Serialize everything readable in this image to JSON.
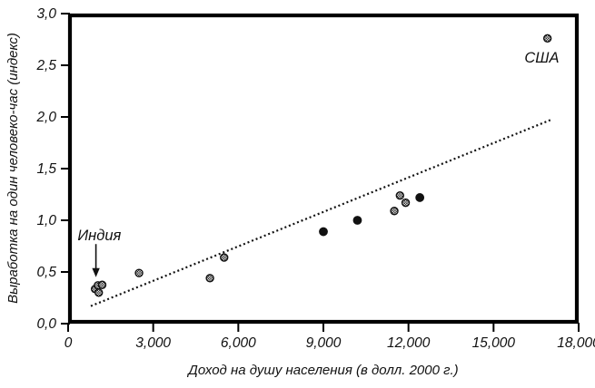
{
  "chart_data": {
    "type": "scatter",
    "title": "",
    "xlabel": "Доход на душу населения (в долл. 2000 г.)",
    "ylabel": "Выработка на один человеко-час (индекс)",
    "xlim": [
      0,
      18000
    ],
    "ylim": [
      0.0,
      3.0
    ],
    "grid": false,
    "legend": "none",
    "x_ticks": [
      0,
      3000,
      6000,
      9000,
      12000,
      15000,
      18000
    ],
    "x_tick_labels": [
      "0",
      "3,000",
      "6,000",
      "9,000",
      "12,000",
      "15,000",
      "18,000"
    ],
    "y_ticks": [
      0.0,
      0.5,
      1.0,
      1.5,
      2.0,
      2.5,
      3.0
    ],
    "y_tick_labels": [
      "0,0",
      "0,5",
      "1,0",
      "1,5",
      "2,0",
      "2,5",
      "3,0"
    ],
    "series": [
      {
        "name": "series-hatched-markers",
        "marker": "hatched-circle",
        "points": [
          [
            950,
            0.335
          ],
          [
            1050,
            0.37
          ],
          [
            1080,
            0.3
          ],
          [
            1200,
            0.375
          ],
          [
            2500,
            0.49
          ],
          [
            5000,
            0.44
          ],
          [
            5500,
            0.64
          ],
          [
            11500,
            1.09
          ],
          [
            11700,
            1.24
          ],
          [
            11900,
            1.17
          ],
          [
            16900,
            2.76
          ]
        ]
      },
      {
        "name": "series-solid-markers",
        "marker": "filled-circle",
        "points": [
          [
            9000,
            0.89
          ],
          [
            10200,
            1.0
          ],
          [
            12400,
            1.22
          ]
        ]
      }
    ],
    "trendline": {
      "style": "dotted",
      "points": [
        [
          800,
          0.17
        ],
        [
          17000,
          1.97
        ]
      ]
    },
    "annotations": [
      {
        "text": "Индия",
        "x": 1100,
        "y": 0.85,
        "arrow": {
          "x": 980,
          "from_y": 0.77,
          "to_y": 0.45
        }
      },
      {
        "text": "США",
        "x": 16700,
        "y": 2.57
      }
    ]
  }
}
